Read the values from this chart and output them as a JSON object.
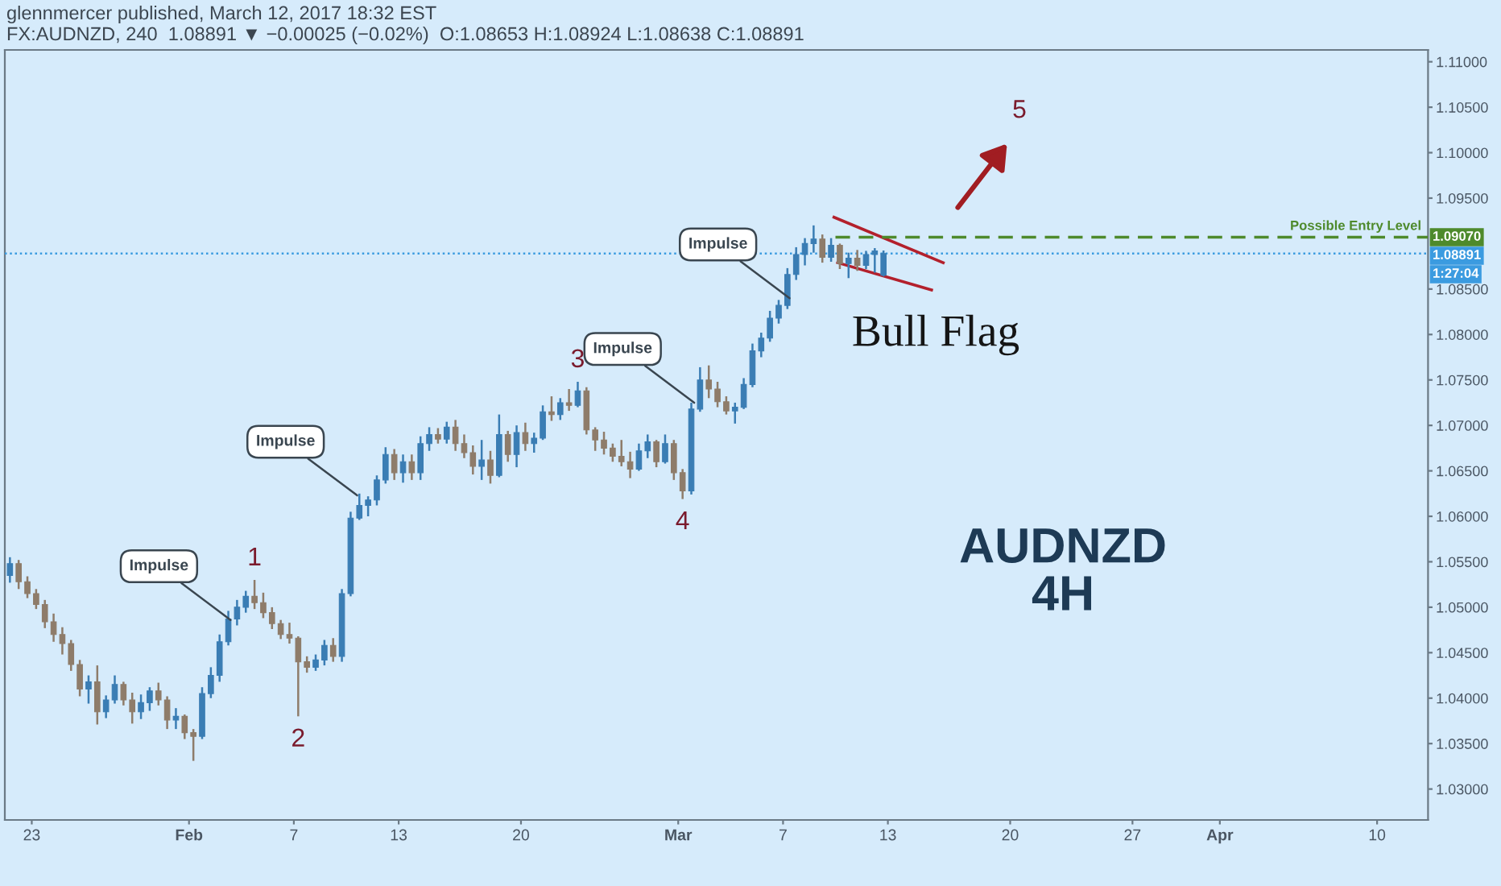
{
  "chart_data": {
    "type": "candlestick",
    "title": "glennmercer published, March 12, 2017 18:32 EST",
    "subtitle": "FX:AUDNZD, 240  1.08891 ▼ −0.00025 (−0.02%)  O:1.08653 H:1.08924 L:1.08638 C:1.08891",
    "x": [
      "2017-01-21T18:00",
      "2017-01-22T06:00",
      "2017-01-22T18:00",
      "2017-01-23T06:00",
      "2017-01-23T18:00",
      "2017-01-24T06:00",
      "2017-01-24T18:00",
      "2017-01-25T06:00",
      "2017-01-25T18:00",
      "2017-01-26T06:00",
      "2017-01-26T18:00",
      "2017-01-27T06:00",
      "2017-01-27T18:00",
      "2017-01-28T06:00",
      "2017-01-28T18:00",
      "2017-01-29T06:00",
      "2017-01-29T18:00",
      "2017-01-30T06:00",
      "2017-01-30T18:00",
      "2017-01-31T06:00",
      "2017-01-31T18:00",
      "2017-02-01T06:00",
      "2017-02-01T18:00",
      "2017-02-02T06:00",
      "2017-02-02T18:00",
      "2017-02-03T06:00",
      "2017-02-03T18:00",
      "2017-02-04T06:00",
      "2017-02-04T18:00",
      "2017-02-05T06:00",
      "2017-02-05T18:00",
      "2017-02-06T06:00",
      "2017-02-06T18:00",
      "2017-02-07T06:00",
      "2017-02-07T18:00",
      "2017-02-08T06:00",
      "2017-02-08T18:00",
      "2017-02-09T06:00",
      "2017-02-09T18:00",
      "2017-02-10T06:00",
      "2017-02-10T18:00",
      "2017-02-11T06:00",
      "2017-02-11T18:00",
      "2017-02-12T06:00",
      "2017-02-12T18:00",
      "2017-02-13T06:00",
      "2017-02-13T18:00",
      "2017-02-14T06:00",
      "2017-02-14T18:00",
      "2017-02-15T06:00",
      "2017-02-15T18:00",
      "2017-02-16T06:00",
      "2017-02-16T18:00",
      "2017-02-17T06:00",
      "2017-02-17T18:00",
      "2017-02-18T06:00",
      "2017-02-18T18:00",
      "2017-02-19T06:00",
      "2017-02-19T18:00",
      "2017-02-20T06:00",
      "2017-02-20T18:00",
      "2017-02-21T06:00",
      "2017-02-21T18:00",
      "2017-02-22T06:00",
      "2017-02-22T18:00",
      "2017-02-23T06:00",
      "2017-02-23T18:00",
      "2017-02-24T06:00",
      "2017-02-24T18:00",
      "2017-02-25T06:00",
      "2017-02-25T18:00",
      "2017-02-26T06:00",
      "2017-02-26T18:00",
      "2017-02-27T06:00",
      "2017-02-27T18:00",
      "2017-02-28T06:00",
      "2017-02-28T18:00",
      "2017-03-01T06:00",
      "2017-03-01T18:00",
      "2017-03-02T06:00",
      "2017-03-02T18:00",
      "2017-03-03T06:00",
      "2017-03-03T18:00",
      "2017-03-04T06:00",
      "2017-03-04T18:00",
      "2017-03-05T06:00",
      "2017-03-05T18:00",
      "2017-03-06T06:00",
      "2017-03-06T18:00",
      "2017-03-07T06:00",
      "2017-03-07T18:00",
      "2017-03-08T06:00",
      "2017-03-08T18:00",
      "2017-03-09T06:00",
      "2017-03-09T18:00",
      "2017-03-10T06:00",
      "2017-03-10T18:00",
      "2017-03-11T06:00",
      "2017-03-11T18:00",
      "2017-03-12T06:00",
      "2017-03-12T18:00"
    ],
    "ohlc": [
      [
        1.0535,
        1.0555,
        1.0527,
        1.0548
      ],
      [
        1.0548,
        1.0552,
        1.052,
        1.0528
      ],
      [
        1.0528,
        1.0534,
        1.051,
        1.0515
      ],
      [
        1.0515,
        1.052,
        1.0498,
        1.0503
      ],
      [
        1.0503,
        1.0508,
        1.0477,
        1.0484
      ],
      [
        1.0484,
        1.0493,
        1.0462,
        1.047
      ],
      [
        1.047,
        1.0478,
        1.0448,
        1.046
      ],
      [
        1.046,
        1.0464,
        1.043,
        1.0437
      ],
      [
        1.0437,
        1.0442,
        1.0402,
        1.041
      ],
      [
        1.041,
        1.0425,
        1.0394,
        1.0418
      ],
      [
        1.0418,
        1.0436,
        1.0371,
        1.0385
      ],
      [
        1.0385,
        1.0403,
        1.0378,
        1.0398
      ],
      [
        1.0398,
        1.0425,
        1.0394,
        1.0415
      ],
      [
        1.0415,
        1.0418,
        1.0392,
        1.0398
      ],
      [
        1.0398,
        1.0406,
        1.0372,
        1.0385
      ],
      [
        1.0385,
        1.0404,
        1.0377,
        1.0395
      ],
      [
        1.0395,
        1.0412,
        1.0386,
        1.0408
      ],
      [
        1.0408,
        1.0417,
        1.0392,
        1.0398
      ],
      [
        1.0398,
        1.0402,
        1.0366,
        1.0376
      ],
      [
        1.0376,
        1.0389,
        1.0366,
        1.038
      ],
      [
        1.038,
        1.0382,
        1.0355,
        1.0362
      ],
      [
        1.0362,
        1.0366,
        1.0331,
        1.0358
      ],
      [
        1.0358,
        1.0412,
        1.0355,
        1.0405
      ],
      [
        1.0405,
        1.0434,
        1.04,
        1.0425
      ],
      [
        1.0425,
        1.047,
        1.0418,
        1.0462
      ],
      [
        1.0462,
        1.0496,
        1.0458,
        1.0487
      ],
      [
        1.0487,
        1.0508,
        1.048,
        1.05
      ],
      [
        1.05,
        1.0518,
        1.0494,
        1.0512
      ],
      [
        1.0512,
        1.053,
        1.0498,
        1.0505
      ],
      [
        1.0505,
        1.0516,
        1.0488,
        1.0494
      ],
      [
        1.0494,
        1.05,
        1.0476,
        1.0482
      ],
      [
        1.0482,
        1.0486,
        1.0465,
        1.047
      ],
      [
        1.047,
        1.0483,
        1.046,
        1.0466
      ],
      [
        1.0466,
        1.0468,
        1.038,
        1.044
      ],
      [
        1.044,
        1.0446,
        1.0428,
        1.0434
      ],
      [
        1.0434,
        1.0448,
        1.043,
        1.0442
      ],
      [
        1.0442,
        1.0464,
        1.0436,
        1.0458
      ],
      [
        1.0458,
        1.0466,
        1.044,
        1.0446
      ],
      [
        1.0446,
        1.052,
        1.044,
        1.0515
      ],
      [
        1.0515,
        1.0605,
        1.0512,
        1.0598
      ],
      [
        1.0598,
        1.0625,
        1.0596,
        1.0612
      ],
      [
        1.0612,
        1.0622,
        1.06,
        1.0618
      ],
      [
        1.0618,
        1.0645,
        1.0612,
        1.064
      ],
      [
        1.064,
        1.0676,
        1.0636,
        1.0668
      ],
      [
        1.0668,
        1.0674,
        1.064,
        1.0648
      ],
      [
        1.0648,
        1.0668,
        1.0637,
        1.066
      ],
      [
        1.066,
        1.0668,
        1.064,
        1.0648
      ],
      [
        1.0648,
        1.0688,
        1.064,
        1.068
      ],
      [
        1.068,
        1.0698,
        1.0672,
        1.069
      ],
      [
        1.069,
        1.0697,
        1.068,
        1.0685
      ],
      [
        1.0685,
        1.0704,
        1.068,
        1.0698
      ],
      [
        1.0698,
        1.0706,
        1.0672,
        1.068
      ],
      [
        1.068,
        1.069,
        1.0664,
        1.067
      ],
      [
        1.067,
        1.0678,
        1.0646,
        1.0655
      ],
      [
        1.0655,
        1.0684,
        1.064,
        1.0662
      ],
      [
        1.0662,
        1.0672,
        1.0636,
        1.0645
      ],
      [
        1.0645,
        1.0712,
        1.0643,
        1.069
      ],
      [
        1.069,
        1.0694,
        1.066,
        1.0668
      ],
      [
        1.0668,
        1.07,
        1.0654,
        1.0692
      ],
      [
        1.0692,
        1.0703,
        1.0672,
        1.068
      ],
      [
        1.068,
        1.0692,
        1.067,
        1.0686
      ],
      [
        1.0686,
        1.0722,
        1.0684,
        1.0715
      ],
      [
        1.0715,
        1.0732,
        1.0705,
        1.0712
      ],
      [
        1.0712,
        1.073,
        1.0706,
        1.0725
      ],
      [
        1.0725,
        1.074,
        1.0716,
        1.0722
      ],
      [
        1.0722,
        1.0748,
        1.072,
        1.0738
      ],
      [
        1.0738,
        1.0742,
        1.069,
        1.0695
      ],
      [
        1.0695,
        1.0698,
        1.0672,
        1.0684
      ],
      [
        1.0684,
        1.0693,
        1.0668,
        1.0675
      ],
      [
        1.0675,
        1.068,
        1.066,
        1.0666
      ],
      [
        1.0666,
        1.0684,
        1.0655,
        1.066
      ],
      [
        1.066,
        1.0671,
        1.0642,
        1.0652
      ],
      [
        1.0652,
        1.068,
        1.065,
        1.0672
      ],
      [
        1.0672,
        1.069,
        1.0664,
        1.0682
      ],
      [
        1.0682,
        1.0684,
        1.0654,
        1.066
      ],
      [
        1.066,
        1.069,
        1.0658,
        1.068
      ],
      [
        1.068,
        1.0684,
        1.064,
        1.0648
      ],
      [
        1.0648,
        1.0652,
        1.0619,
        1.0628
      ],
      [
        1.0628,
        1.0725,
        1.0624,
        1.0718
      ],
      [
        1.0718,
        1.0764,
        1.0715,
        1.075
      ],
      [
        1.075,
        1.0766,
        1.073,
        1.074
      ],
      [
        1.074,
        1.0748,
        1.072,
        1.0726
      ],
      [
        1.0726,
        1.0732,
        1.0712,
        1.0716
      ],
      [
        1.0716,
        1.0725,
        1.0702,
        1.072
      ],
      [
        1.072,
        1.0752,
        1.0718,
        1.0745
      ],
      [
        1.0745,
        1.079,
        1.0742,
        1.0782
      ],
      [
        1.0782,
        1.0802,
        1.0775,
        1.0796
      ],
      [
        1.0796,
        1.0826,
        1.0792,
        1.0818
      ],
      [
        1.0818,
        1.0838,
        1.0812,
        1.0832
      ],
      [
        1.0832,
        1.0873,
        1.0828,
        1.0866
      ],
      [
        1.0866,
        1.0896,
        1.086,
        1.0888
      ],
      [
        1.0888,
        1.0906,
        1.0876,
        1.09
      ],
      [
        1.09,
        1.092,
        1.089,
        1.0905
      ],
      [
        1.0905,
        1.091,
        1.0879,
        1.0885
      ],
      [
        1.0885,
        1.0906,
        1.088,
        1.0898
      ],
      [
        1.0898,
        1.09,
        1.0872,
        1.0878
      ],
      [
        1.0878,
        1.089,
        1.0862,
        1.0884
      ],
      [
        1.0884,
        1.0893,
        1.087,
        1.0876
      ],
      [
        1.0876,
        1.0892,
        1.0872,
        1.0888
      ],
      [
        1.0888,
        1.0895,
        1.0868,
        1.0892
      ],
      [
        1.08653,
        1.08924,
        1.08638,
        1.08891
      ]
    ],
    "colors": [
      "#3a7db4",
      "#8e7c6a",
      "#8e7c6a",
      "#8e7c6a",
      "#8e7c6a",
      "#8e7c6a",
      "#8e7c6a",
      "#8e7c6a",
      "#8e7c6a",
      "#3a7db4",
      "#8e7c6a",
      "#3a7db4",
      "#3a7db4",
      "#8e7c6a",
      "#8e7c6a",
      "#3a7db4",
      "#3a7db4",
      "#8e7c6a",
      "#8e7c6a",
      "#3a7db4",
      "#8e7c6a",
      "#8e7c6a",
      "#3a7db4",
      "#3a7db4",
      "#3a7db4",
      "#3a7db4",
      "#3a7db4",
      "#3a7db4",
      "#8e7c6a",
      "#8e7c6a",
      "#8e7c6a",
      "#8e7c6a",
      "#8e7c6a",
      "#8e7c6a",
      "#8e7c6a",
      "#3a7db4",
      "#3a7db4",
      "#8e7c6a",
      "#3a7db4",
      "#3a7db4",
      "#3a7db4",
      "#3a7db4",
      "#3a7db4",
      "#3a7db4",
      "#8e7c6a",
      "#3a7db4",
      "#8e7c6a",
      "#3a7db4",
      "#3a7db4",
      "#8e7c6a",
      "#3a7db4",
      "#8e7c6a",
      "#8e7c6a",
      "#8e7c6a",
      "#3a7db4",
      "#8e7c6a",
      "#3a7db4",
      "#8e7c6a",
      "#3a7db4",
      "#8e7c6a",
      "#3a7db4",
      "#3a7db4",
      "#8e7c6a",
      "#3a7db4",
      "#8e7c6a",
      "#3a7db4",
      "#8e7c6a",
      "#8e7c6a",
      "#8e7c6a",
      "#8e7c6a",
      "#8e7c6a",
      "#8e7c6a",
      "#3a7db4",
      "#3a7db4",
      "#8e7c6a",
      "#3a7db4",
      "#8e7c6a",
      "#8e7c6a",
      "#3a7db4",
      "#3a7db4",
      "#8e7c6a",
      "#8e7c6a",
      "#8e7c6a",
      "#3a7db4",
      "#3a7db4",
      "#3a7db4",
      "#3a7db4",
      "#3a7db4",
      "#3a7db4",
      "#3a7db4",
      "#3a7db4",
      "#3a7db4",
      "#3a7db4",
      "#8e7c6a",
      "#3a7db4",
      "#8e7c6a",
      "#3a7db4",
      "#8e7c6a",
      "#3a7db4",
      "#3a7db4",
      "#3a7db4"
    ],
    "series": [
      {
        "type": "line",
        "x": [
          "2017-03-09T22:00",
          "2017-03-16T04:00"
        ],
        "values": [
          1.0929,
          1.0879
        ],
        "color": "#b3202c"
      },
      {
        "type": "line",
        "x": [
          "2017-03-10T03:00",
          "2017-03-15T12:00"
        ],
        "values": [
          1.0879,
          1.0849
        ],
        "color": "#b3202c"
      },
      {
        "type": "line",
        "name": "Possible Entry Level",
        "x": [
          "2017-03-10T00:00",
          "2017-04-12T22:00"
        ],
        "values": [
          1.0907,
          1.0907
        ],
        "color": "#4e8a2c",
        "line_style": "dashed"
      }
    ],
    "ref_lines": [
      {
        "axis": "y",
        "value": 1.08891,
        "label": "1:27:04",
        "color": "#3b9be0",
        "line_style": "dotted"
      }
    ],
    "annotations": [
      {
        "text": "Impulse",
        "x": "2017-02-03T09:00",
        "y": 1.0486
      },
      {
        "text": "Impulse",
        "x": "2017-02-10T15:00",
        "y": 1.0623
      },
      {
        "text": "Impulse",
        "x": "2017-03-01T22:00",
        "y": 1.0725
      },
      {
        "text": "Impulse",
        "x": "2017-03-07T09:00",
        "y": 1.084
      },
      {
        "text": "1",
        "x": "2017-02-04T18:00",
        "y": 1.053
      },
      {
        "text": "2",
        "x": "2017-02-07T06:00",
        "y": 1.038
      },
      {
        "text": "3",
        "x": "2017-02-23T06:00",
        "y": 1.0748
      },
      {
        "text": "4",
        "x": "2017-03-01T06:00",
        "y": 1.0619
      },
      "5",
      "Bull Flag",
      "AUDNZD\n4H"
    ],
    "xlim": [
      "2017-01-21T11:00",
      "2017-04-12T22:00"
    ],
    "ylim": [
      1.0266,
      1.1113
    ],
    "xticks": [
      {
        "value": "2017-01-23",
        "label": "23"
      },
      {
        "value": "2017-02-01",
        "label": "Feb"
      },
      {
        "value": "2017-02-07",
        "label": "7"
      },
      {
        "value": "2017-02-13",
        "label": "13"
      },
      {
        "value": "2017-02-20",
        "label": "20"
      },
      {
        "value": "2017-03-01",
        "label": "Mar"
      },
      {
        "value": "2017-03-07",
        "label": "7"
      },
      {
        "value": "2017-03-13",
        "label": "13"
      },
      {
        "value": "2017-03-20",
        "label": "20"
      },
      {
        "value": "2017-03-27",
        "label": "27"
      },
      {
        "value": "2017-04-01",
        "label": "Apr"
      },
      {
        "value": "2017-04-10",
        "label": "10"
      }
    ],
    "yticks": [
      {
        "value": 1.03,
        "label": "1.03000"
      },
      {
        "value": 1.035,
        "label": "1.03500"
      },
      {
        "value": 1.04,
        "label": "1.04000"
      },
      {
        "value": 1.045,
        "label": "1.04500"
      },
      {
        "value": 1.05,
        "label": "1.05000"
      },
      {
        "value": 1.055,
        "label": "1.05500"
      },
      {
        "value": 1.06,
        "label": "1.06000"
      },
      {
        "value": 1.065,
        "label": "1.06500"
      },
      {
        "value": 1.07,
        "label": "1.07000"
      },
      {
        "value": 1.075,
        "label": "1.07500"
      },
      {
        "value": 1.08,
        "label": "1.08000"
      },
      {
        "value": 1.085,
        "label": "1.08500"
      },
      {
        "value": 1.08891,
        "label": "1.08891"
      },
      {
        "value": 1.0907,
        "label": "1.09070"
      },
      {
        "value": 1.095,
        "label": "1.09500"
      },
      {
        "value": 1.1,
        "label": "1.10000"
      },
      {
        "value": 1.105,
        "label": "1.10500"
      },
      {
        "value": 1.11,
        "label": "1.11000"
      }
    ]
  }
}
